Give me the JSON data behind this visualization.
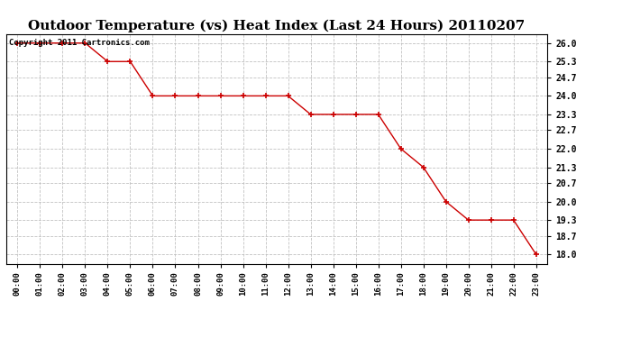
{
  "title": "Outdoor Temperature (vs) Heat Index (Last 24 Hours) 20110207",
  "copyright_text": "Copyright 2011 Cartronics.com",
  "x_labels": [
    "00:00",
    "01:00",
    "02:00",
    "03:00",
    "04:00",
    "05:00",
    "06:00",
    "07:00",
    "08:00",
    "09:00",
    "10:00",
    "11:00",
    "12:00",
    "13:00",
    "14:00",
    "15:00",
    "16:00",
    "17:00",
    "18:00",
    "19:00",
    "20:00",
    "21:00",
    "22:00",
    "23:00"
  ],
  "y_values": [
    26.0,
    26.0,
    26.0,
    26.0,
    25.3,
    25.3,
    24.0,
    24.0,
    24.0,
    24.0,
    24.0,
    24.0,
    24.0,
    23.3,
    23.3,
    23.3,
    23.3,
    22.0,
    21.3,
    20.0,
    19.3,
    19.3,
    19.3,
    18.0
  ],
  "y_ticks": [
    18.0,
    18.7,
    19.3,
    20.0,
    20.7,
    21.3,
    22.0,
    22.7,
    23.3,
    24.0,
    24.7,
    25.3,
    26.0
  ],
  "y_min": 17.65,
  "y_max": 26.35,
  "line_color": "#cc0000",
  "marker_color": "#cc0000",
  "bg_color": "#ffffff",
  "grid_color": "#bbbbbb",
  "title_fontsize": 11,
  "copyright_fontsize": 6.5
}
